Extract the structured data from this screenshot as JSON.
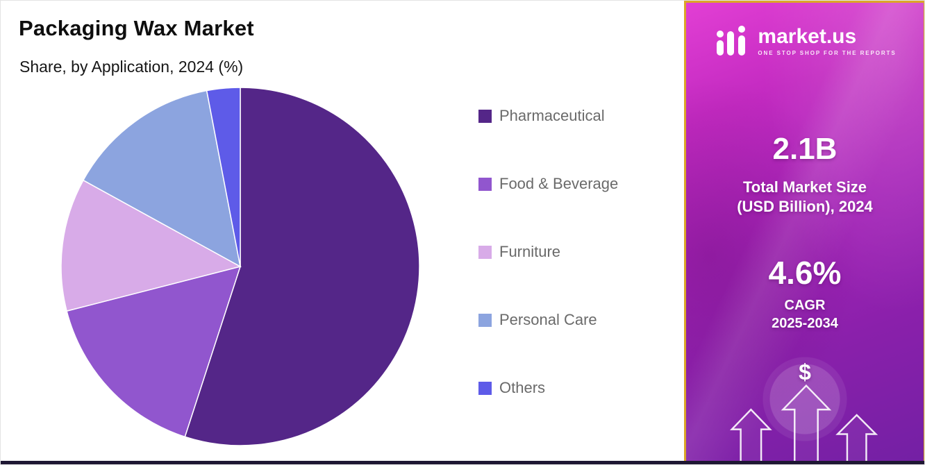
{
  "header": {
    "title": "Packaging Wax Market",
    "subtitle": "Share, by Application, 2024 (%)"
  },
  "chart_data": {
    "type": "pie",
    "title": "Packaging Wax Market",
    "subtitle": "Share, by Application, 2024 (%)",
    "unit": "%",
    "labels": [
      "Pharmaceutical",
      "Food & Beverage",
      "Furniture",
      "Personal Care",
      "Others"
    ],
    "values": [
      55,
      16,
      12,
      14,
      3
    ],
    "colors": [
      "#542688",
      "#9156CE",
      "#D8ABE8",
      "#8CA4DF",
      "#5E5BE8"
    ],
    "start_angle_deg": 0,
    "direction": "clockwise",
    "legend_position": "right"
  },
  "sidebar": {
    "logo": {
      "brand": "market.us",
      "tagline": "ONE STOP SHOP FOR THE REPORTS"
    },
    "market_size": {
      "value": "2.1B",
      "label_line1": "Total Market Size",
      "label_line2": "(USD Billion), 2024"
    },
    "cagr": {
      "value": "4.6%",
      "label": "CAGR",
      "period": "2025-2034"
    },
    "currency_symbol": "$",
    "accent_border_color": "#DBA628"
  }
}
